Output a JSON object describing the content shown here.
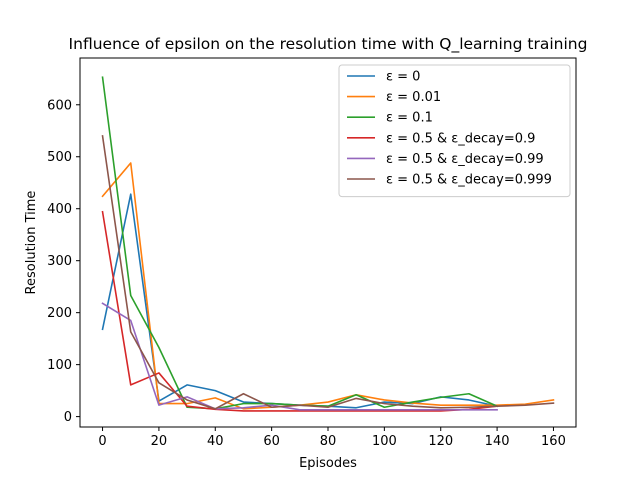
{
  "chart_data": {
    "type": "line",
    "title": "Influence of epsilon on the resolution time with Q_learning training",
    "xlabel": "Episodes",
    "ylabel": "Resolution Time",
    "xlim": [
      -8,
      168
    ],
    "ylim": [
      -20,
      690
    ],
    "xticks": [
      0,
      20,
      40,
      60,
      80,
      100,
      120,
      140,
      160
    ],
    "yticks": [
      0,
      100,
      200,
      300,
      400,
      500,
      600
    ],
    "grid": false,
    "legend_position": "upper right",
    "series": [
      {
        "name": "ε = 0",
        "color": "#1f77b4",
        "x": [
          0,
          10,
          20,
          30,
          40,
          50,
          60,
          70,
          80,
          90,
          100,
          110,
          120,
          130,
          140
        ],
        "y": [
          168,
          428,
          30,
          61,
          50,
          28,
          25,
          22,
          20,
          17,
          28,
          25,
          38,
          32,
          20
        ]
      },
      {
        "name": "ε = 0.01",
        "color": "#ff7f0e",
        "x": [
          0,
          10,
          20,
          30,
          40,
          50,
          60,
          70,
          80,
          90,
          100,
          110,
          120,
          130,
          140,
          150,
          160
        ],
        "y": [
          424,
          488,
          25,
          25,
          36,
          15,
          18,
          22,
          28,
          42,
          32,
          26,
          22,
          22,
          22,
          24,
          32
        ]
      },
      {
        "name": "ε = 0.1",
        "color": "#2ca02c",
        "x": [
          0,
          10,
          20,
          30,
          40,
          50,
          60,
          70,
          80,
          90,
          100,
          110,
          120,
          130,
          140
        ],
        "y": [
          653,
          233,
          133,
          18,
          15,
          25,
          25,
          22,
          20,
          42,
          18,
          28,
          37,
          44,
          20
        ]
      },
      {
        "name": "ε = 0.5 & ε_decay=0.9",
        "color": "#d62728",
        "x": [
          0,
          10,
          20,
          30,
          40,
          50,
          60,
          70,
          80,
          90,
          100,
          110,
          120,
          130,
          140
        ],
        "y": [
          394,
          61,
          84,
          20,
          14,
          11,
          11,
          11,
          11,
          11,
          11,
          11,
          11,
          14,
          20
        ]
      },
      {
        "name": "ε = 0.5 & ε_decay=0.99",
        "color": "#9467bd",
        "x": [
          0,
          10,
          20,
          30,
          40,
          50,
          60,
          70,
          80,
          90,
          100,
          110,
          120,
          130,
          140
        ],
        "y": [
          218,
          185,
          22,
          38,
          15,
          17,
          22,
          13,
          13,
          13,
          13,
          13,
          13,
          13,
          13
        ]
      },
      {
        "name": "ε = 0.5 & ε_decay=0.999",
        "color": "#8c564b",
        "x": [
          0,
          10,
          20,
          30,
          40,
          50,
          60,
          70,
          80,
          90,
          100,
          110,
          120,
          130,
          140,
          150,
          160
        ],
        "y": [
          540,
          163,
          65,
          32,
          15,
          44,
          18,
          22,
          18,
          35,
          25,
          20,
          17,
          18,
          20,
          22,
          26
        ]
      }
    ]
  }
}
